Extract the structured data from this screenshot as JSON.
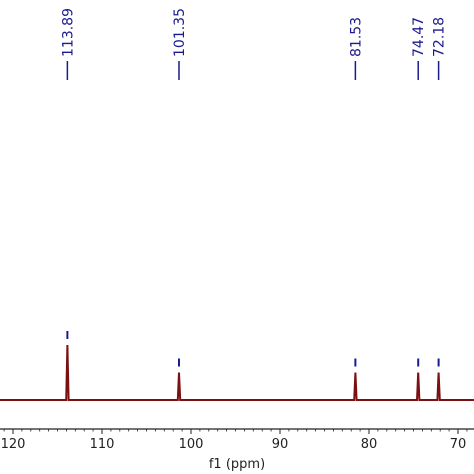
{
  "chart_data": {
    "type": "line",
    "xlabel": "f1 (ppm)",
    "x_reversed": true,
    "xlim": [
      68,
      121
    ],
    "x_ticks": [
      120,
      110,
      100,
      90,
      80,
      70
    ],
    "peaks": [
      {
        "ppm": 113.89,
        "label": "113.89",
        "relative_height": 1.0
      },
      {
        "ppm": 101.35,
        "label": "101.35",
        "relative_height": 0.5
      },
      {
        "ppm": 81.53,
        "label": "81.53",
        "relative_height": 0.5
      },
      {
        "ppm": 74.47,
        "label": "74.47",
        "relative_height": 0.5
      },
      {
        "ppm": 72.18,
        "label": "72.18",
        "relative_height": 0.5
      }
    ],
    "colors": {
      "spectrum": "#7a1010",
      "peak_label": "#1a1a8c",
      "axis": "#222222"
    }
  }
}
